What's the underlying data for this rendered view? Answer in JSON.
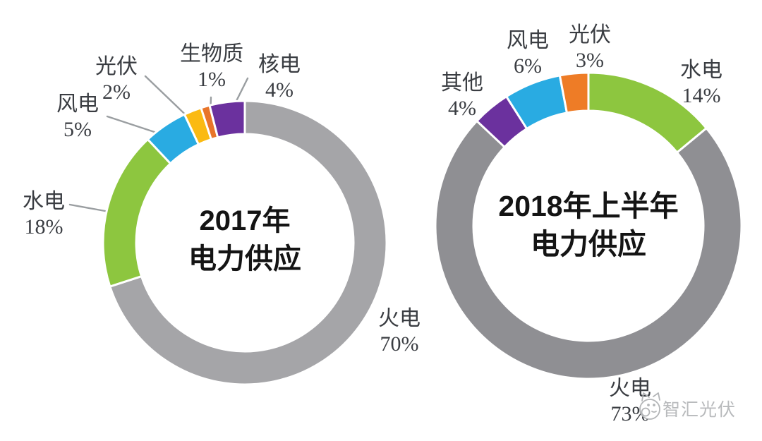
{
  "page": {
    "background": "#FFFFFF"
  },
  "chart_data": [
    {
      "type": "pie",
      "subtype": "donut",
      "title": "2017年电力供应",
      "title_lines": [
        "2017年",
        "电力供应"
      ],
      "categories": [
        "火电",
        "水电",
        "风电",
        "光伏",
        "生物质",
        "核电"
      ],
      "values": [
        70,
        18,
        5,
        2,
        1,
        4
      ],
      "labels": [
        "70%",
        "18%",
        "5%",
        "2%",
        "1%",
        "4%"
      ],
      "unit": "percent",
      "colors": [
        "#A5A5A8",
        "#8DC63F",
        "#29ABE2",
        "#FBBA12",
        "#E8752A",
        "#6B319E"
      ],
      "ids": [
        "huodian",
        "shuidian",
        "fengdian",
        "guangfu",
        "shengwuzhi",
        "hedian"
      ],
      "start_angle_deg": 0,
      "direction": "clockwise",
      "legend": "none",
      "grid": "off"
    },
    {
      "type": "pie",
      "subtype": "donut",
      "title": "2018年上半年电力供应",
      "title_lines": [
        "2018年上半年",
        "电力供应"
      ],
      "categories": [
        "水电",
        "火电",
        "其他",
        "风电",
        "光伏"
      ],
      "values": [
        14,
        73,
        4,
        6,
        3
      ],
      "labels": [
        "14%",
        "73%",
        "4%",
        "6%",
        "3%"
      ],
      "unit": "percent",
      "colors": [
        "#8DC63F",
        "#8F8F93",
        "#6B319E",
        "#29ABE2",
        "#EE7C26"
      ],
      "ids": [
        "shuidian",
        "huodian",
        "qita",
        "fengdian",
        "guangfu"
      ],
      "start_angle_deg": 0,
      "direction": "clockwise",
      "legend": "none",
      "grid": "off"
    }
  ],
  "watermark": {
    "text": "智汇光伏",
    "logo": "cat-face-logo"
  },
  "style": {
    "slice_gap_stroke": "#FFFFFF",
    "leader_line_color": "#9a9ea1",
    "label_text_color": "#3a3d42",
    "title_text_color": "#141414",
    "watermark_color": "#b8babc"
  }
}
